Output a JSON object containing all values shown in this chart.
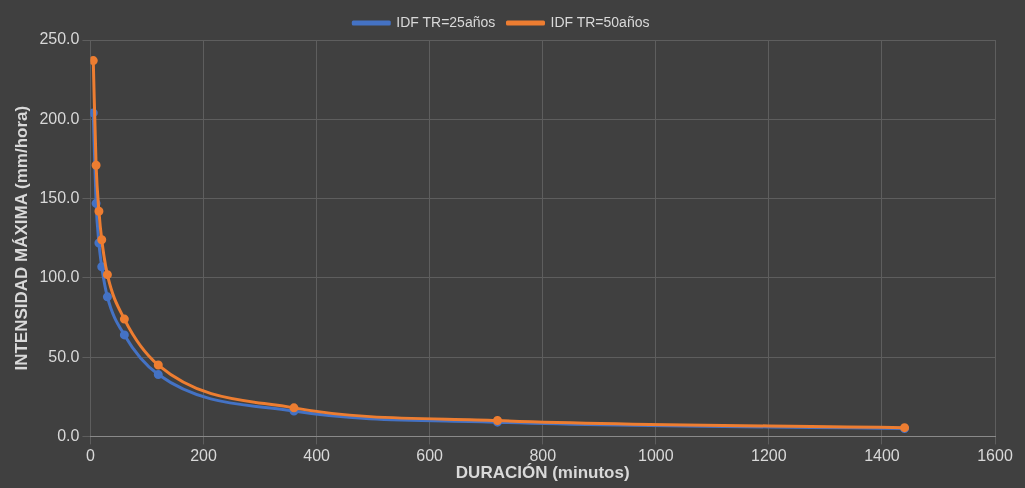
{
  "chart_data": {
    "type": "line",
    "xlabel": "DURACIÓN (minutos)",
    "ylabel": "INTENSIDAD MÁXIMA (mm/hora)",
    "x": [
      5,
      10,
      15,
      20,
      30,
      60,
      120,
      360,
      720,
      1440
    ],
    "series": [
      {
        "name": "IDF TR=25años",
        "color": "#4472c4",
        "values": [
          204,
          147,
          122,
          107,
          88,
          64,
          39,
          16,
          9,
          5
        ]
      },
      {
        "name": "IDF TR=50años",
        "color": "#ed7d31",
        "values": [
          237,
          171,
          142,
          124,
          102,
          74,
          45,
          18,
          10,
          5.5
        ]
      }
    ],
    "xlim": [
      0,
      1600
    ],
    "xticks": [
      0,
      200,
      400,
      600,
      800,
      1000,
      1200,
      1400,
      1600
    ],
    "ylim": [
      0,
      250
    ],
    "yticks": [
      {
        "value": 0,
        "label": "0.0"
      },
      {
        "value": 50,
        "label": "50.0"
      },
      {
        "value": 100,
        "label": "100.0"
      },
      {
        "value": 150,
        "label": "150.0"
      },
      {
        "value": 200,
        "label": "200.0"
      },
      {
        "value": 250,
        "label": "250.0"
      }
    ],
    "grid": true,
    "legend": "top",
    "marker": "circle",
    "line_style": "solid"
  }
}
